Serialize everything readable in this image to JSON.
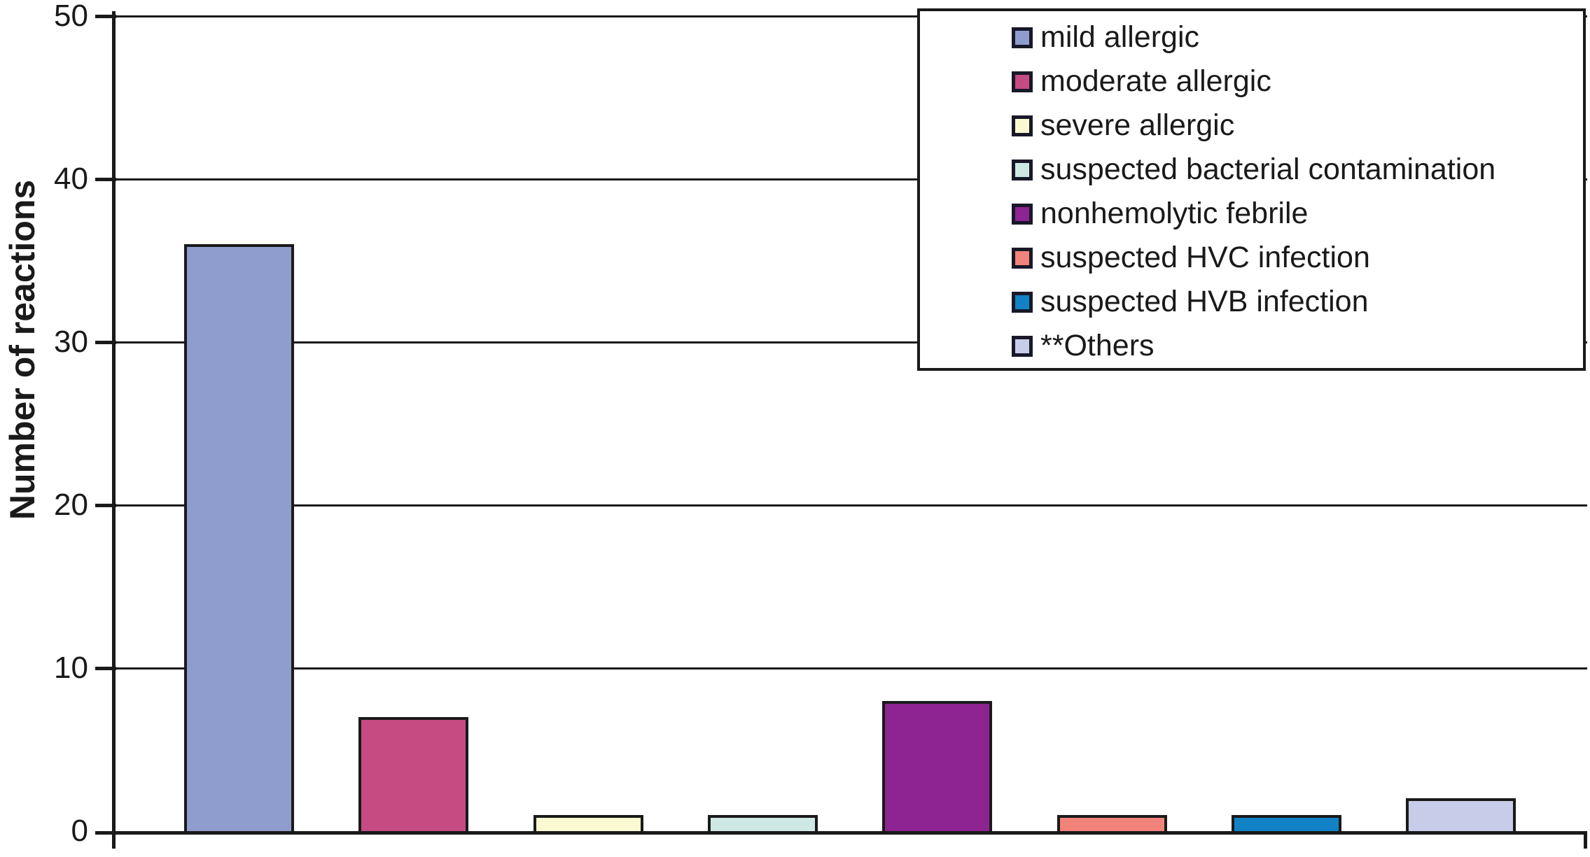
{
  "chart_data": {
    "type": "bar",
    "title": "",
    "xlabel": "",
    "ylabel": "Number of reactions",
    "ylim": [
      0,
      50
    ],
    "yticks": [
      0,
      10,
      20,
      30,
      40,
      50
    ],
    "grid": true,
    "legend_position": "top-right",
    "categories": [
      "mild allergic",
      "moderate allergic",
      "severe allergic",
      "suspected bacterial contamination",
      "nonhemolytic febrile",
      "suspected HVC infection",
      "suspected HVB infection",
      "**Others"
    ],
    "values": [
      36,
      7,
      1,
      1,
      8,
      1,
      1,
      2
    ],
    "bar_colors": [
      "#8F9CCE",
      "#C54B82",
      "#FBF9D2",
      "#CEE9E3",
      "#8E2392",
      "#F2837B",
      "#1182C5",
      "#C7CCE8"
    ],
    "bar_border_color": "#1A1A1A",
    "axis_color": "#1A1A1A",
    "text_color": "#1A1A1A",
    "legend_swatch_border_color": "#181828"
  }
}
